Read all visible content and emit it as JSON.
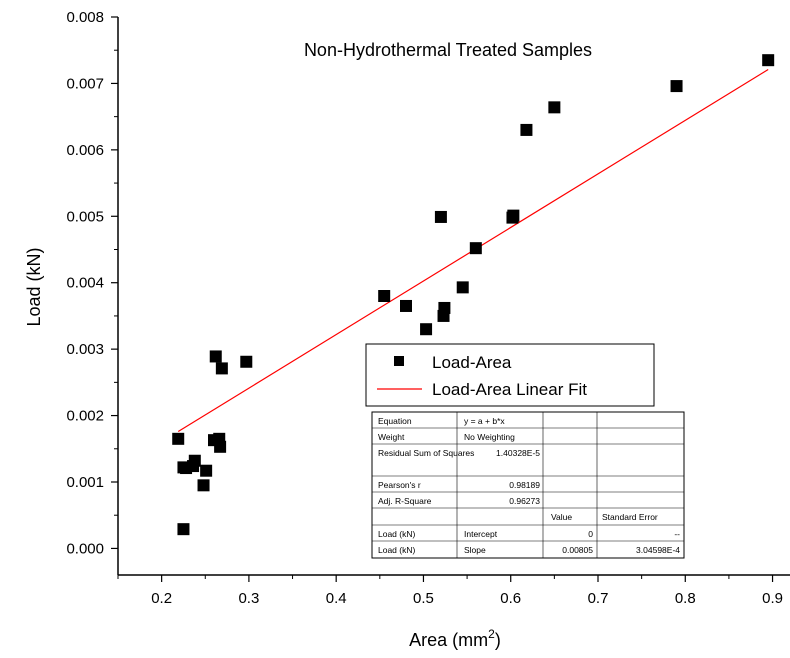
{
  "chart_data": {
    "type": "scatter",
    "title": "Non-Hydrothermal Treated Samples",
    "xlabel": "Area (mm",
    "xlabel_sup": "2",
    "xlabel_end": ")",
    "ylabel": "Load (kN)",
    "xlim": [
      0.15,
      0.92
    ],
    "ylim": [
      -0.0004,
      0.008
    ],
    "x_ticks": [
      0.2,
      0.3,
      0.4,
      0.5,
      0.6,
      0.7,
      0.8,
      0.9
    ],
    "x_tick_labels": [
      "0.2",
      "0.3",
      "0.4",
      "0.5",
      "0.6",
      "0.7",
      "0.8",
      "0.9"
    ],
    "y_ticks": [
      0.0,
      0.001,
      0.002,
      0.003,
      0.004,
      0.005,
      0.006,
      0.007,
      0.008
    ],
    "y_tick_labels": [
      "0.000",
      "0.001",
      "0.002",
      "0.003",
      "0.004",
      "0.005",
      "0.006",
      "0.007",
      "0.008"
    ],
    "grid": false,
    "legend_position": "center-right",
    "series": [
      {
        "name": "Load-Area",
        "kind": "scatter",
        "marker": "square",
        "color": "#000000",
        "x": [
          0.219,
          0.225,
          0.228,
          0.236,
          0.238,
          0.248,
          0.251,
          0.26,
          0.262,
          0.266,
          0.267,
          0.269,
          0.297,
          0.225,
          0.455,
          0.48,
          0.503,
          0.52,
          0.523,
          0.524,
          0.545,
          0.56,
          0.602,
          0.603,
          0.618,
          0.65,
          0.79,
          0.895
        ],
        "y": [
          0.00165,
          0.00122,
          0.00121,
          0.00124,
          0.00132,
          0.00095,
          0.00117,
          0.00163,
          0.00289,
          0.00165,
          0.00153,
          0.00271,
          0.00281,
          0.00029,
          0.0038,
          0.00365,
          0.0033,
          0.00499,
          0.0035,
          0.00362,
          0.00393,
          0.00452,
          0.00498,
          0.00501,
          0.0063,
          0.00664,
          0.00696,
          0.00735
        ]
      },
      {
        "name": "Load-Area Linear Fit",
        "kind": "line",
        "color": "#ff0000",
        "x": [
          0.219,
          0.895
        ],
        "y": [
          0.00176,
          0.00721
        ]
      }
    ],
    "fit_table": {
      "rows_top": [
        {
          "label": "Equation",
          "value": "y = a + b*x"
        },
        {
          "label": "Weight",
          "value": "No Weighting"
        },
        {
          "label": "Residual Sum of Squares",
          "value": "1.40328E-5"
        },
        {
          "label": "Pearson's r",
          "value": "0.98189"
        },
        {
          "label": "Adj. R-Square",
          "value": "0.96273"
        }
      ],
      "header": [
        "",
        "",
        "Value",
        "Standard Error"
      ],
      "rows_bottom": [
        [
          "Load (kN)",
          "Intercept",
          "0",
          "--"
        ],
        [
          "Load (kN)",
          "Slope",
          "0.00805",
          "3.04598E-4"
        ]
      ]
    }
  }
}
